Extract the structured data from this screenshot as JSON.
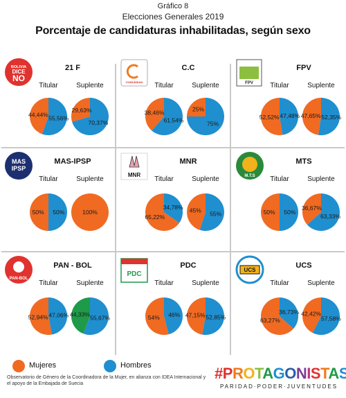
{
  "header": {
    "graf": "Gráfico 8",
    "subtitle": "Elecciones Generales 2019",
    "title": "Porcentaje de candidaturas inhabilitadas, según sexo"
  },
  "columns": {
    "titular": "Titular",
    "suplente": "Suplente"
  },
  "colors": {
    "mujeres": "#f06a22",
    "hombres": "#1f8fcf",
    "extra": "#1e9a48"
  },
  "legend": {
    "mujeres": "Mujeres",
    "hombres": "Hombres"
  },
  "footnote": "Observatorio de Género de la Coordinadora de la Mujer, en alianza con IDEA Internacional y el apoyo de la Embajada de Suecia",
  "brand": {
    "hash": "#",
    "letters": [
      "P",
      "R",
      "O",
      "T",
      "A",
      "G",
      "O",
      "N",
      "I",
      "S",
      "T",
      "A",
      "S"
    ],
    "letter_colors": [
      "#e0322e",
      "#f07a1c",
      "#f2b21b",
      "#8cbf3f",
      "#1e9a48",
      "#1f8fcf",
      "#2a5ea8",
      "#7a3f98",
      "#c0337a",
      "#e0322e",
      "#f07a1c",
      "#1e9a48",
      "#1f8fcf"
    ],
    "tagline": "PARIDAD·PODER·JUVENTUDES"
  },
  "logos": [
    {
      "name": "bolivia-dice-no-logo",
      "text": "BOLIVIA DICE NO"
    },
    {
      "name": "comunidad-ciudadana-logo",
      "text": "COMUNIDAD CIUDADANA"
    },
    {
      "name": "fpv-logo",
      "text": "FPV"
    },
    {
      "name": "mas-ipsp-logo",
      "text": "MAS IPSP"
    },
    {
      "name": "mnr-logo",
      "text": "MNR"
    },
    {
      "name": "mts-logo",
      "text": "M.T.S"
    },
    {
      "name": "pan-bol-logo",
      "text": "PAN-BOL"
    },
    {
      "name": "pdc-logo",
      "text": "PDC"
    },
    {
      "name": "ucs-logo",
      "text": "UCS"
    }
  ],
  "chart_data": {
    "type": "pie",
    "title": "Porcentaje de candidaturas inhabilitadas, según sexo",
    "legend": [
      "Mujeres",
      "Hombres"
    ],
    "parties": [
      {
        "party": "21 F",
        "titular": {
          "mujeres": 44.44,
          "hombres": 55.56,
          "labels": [
            "44,44%",
            "55,56%"
          ]
        },
        "suplente": {
          "mujeres": 29.63,
          "hombres": 70.37,
          "labels": [
            "29,63%",
            "70,37%"
          ]
        }
      },
      {
        "party": "C.C",
        "titular": {
          "mujeres": 38.46,
          "hombres": 61.54,
          "labels": [
            "38,46%",
            "61,54%"
          ]
        },
        "suplente": {
          "mujeres": 25,
          "hombres": 75,
          "labels": [
            "25%",
            "75%"
          ]
        }
      },
      {
        "party": "FPV",
        "titular": {
          "mujeres": 52.52,
          "hombres": 47.48,
          "labels": [
            "52,52%",
            "47,48%"
          ]
        },
        "suplente": {
          "mujeres": 47.65,
          "hombres": 52.35,
          "labels": [
            "47,65%",
            "52,35%"
          ]
        }
      },
      {
        "party": "MAS-IPSP",
        "titular": {
          "mujeres": 50,
          "hombres": 50,
          "labels": [
            "50%",
            "50%"
          ]
        },
        "suplente": {
          "mujeres": 100,
          "hombres": 0,
          "labels": [
            "100%",
            ""
          ]
        }
      },
      {
        "party": "MNR",
        "titular": {
          "mujeres": 65.22,
          "hombres": 34.78,
          "labels": [
            "65,22%",
            "34,78%"
          ]
        },
        "suplente": {
          "mujeres": 45,
          "hombres": 55,
          "labels": [
            "45%",
            "55%"
          ]
        }
      },
      {
        "party": "MTS",
        "titular": {
          "mujeres": 50,
          "hombres": 50,
          "labels": [
            "50%",
            "50%"
          ]
        },
        "suplente": {
          "mujeres": 36.67,
          "hombres": 63.33,
          "labels": [
            "36,67%",
            "63,33%"
          ]
        }
      },
      {
        "party": "PAN - BOL",
        "titular": {
          "mujeres": 52.94,
          "hombres": 47.06,
          "labels": [
            "52,94%",
            "47,06%"
          ]
        },
        "suplente": {
          "mujeres": 44.33,
          "hombres": 55.67,
          "labels": [
            "44,33%",
            "55,67%"
          ],
          "mujeres_color": "extra"
        }
      },
      {
        "party": "PDC",
        "titular": {
          "mujeres": 54,
          "hombres": 46,
          "labels": [
            "54%",
            "46%"
          ]
        },
        "suplente": {
          "mujeres": 47.15,
          "hombres": 52.85,
          "labels": [
            "47,15%",
            "52,85%"
          ]
        }
      },
      {
        "party": "UCS",
        "titular": {
          "mujeres": 63.27,
          "hombres": 36.73,
          "labels": [
            "63,27%",
            "36,73%"
          ]
        },
        "suplente": {
          "mujeres": 42.42,
          "hombres": 57.58,
          "labels": [
            "42,42%",
            "57,58%"
          ]
        }
      }
    ]
  }
}
